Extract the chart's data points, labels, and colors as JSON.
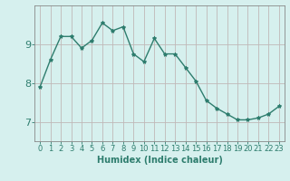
{
  "x": [
    0,
    1,
    2,
    3,
    4,
    5,
    6,
    7,
    8,
    9,
    10,
    11,
    12,
    13,
    14,
    15,
    16,
    17,
    18,
    19,
    20,
    21,
    22,
    23
  ],
  "y": [
    7.9,
    8.6,
    9.2,
    9.2,
    8.9,
    9.1,
    9.55,
    9.35,
    9.45,
    8.75,
    8.55,
    9.15,
    8.75,
    8.75,
    8.4,
    8.05,
    7.55,
    7.35,
    7.2,
    7.05,
    7.05,
    7.1,
    7.2,
    7.4
  ],
  "line_color": "#2e7d6e",
  "marker": "*",
  "marker_size": 3,
  "background_color": "#d6f0ee",
  "grid_color": "#c0b8b8",
  "axis_color": "#2e7d6e",
  "xlabel": "Humidex (Indice chaleur)",
  "xlabel_fontsize": 7,
  "tick_fontsize": 6,
  "ylim_min": 6.5,
  "ylim_max": 10.0,
  "xlim_min": -0.5,
  "xlim_max": 23.5,
  "yticks": [
    7,
    8,
    9
  ],
  "xticks": [
    0,
    1,
    2,
    3,
    4,
    5,
    6,
    7,
    8,
    9,
    10,
    11,
    12,
    13,
    14,
    15,
    16,
    17,
    18,
    19,
    20,
    21,
    22,
    23
  ]
}
